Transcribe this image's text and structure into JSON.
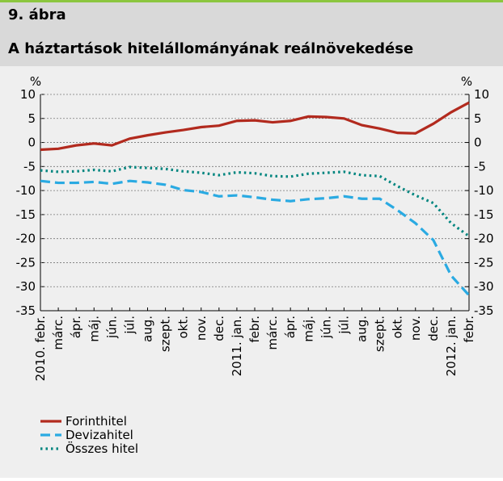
{
  "chart_data": {
    "type": "line",
    "title": "9. ábra",
    "subtitle": "A háztartások hitelállományának reálnövekedése",
    "ylabel": "%",
    "y2label": "%",
    "categories": [
      "2010. febr.",
      "márc.",
      "ápr.",
      "máj.",
      "jún.",
      "júl.",
      "aug.",
      "szept.",
      "okt.",
      "nov.",
      "dec.",
      "2011. jan.",
      "febr.",
      "márc.",
      "ápr.",
      "máj.",
      "jún.",
      "júl.",
      "aug.",
      "szept.",
      "okt.",
      "nov.",
      "dec.",
      "2012. jan.",
      "febr."
    ],
    "series": [
      {
        "name": "Forinthitel",
        "color": "#b22a1e",
        "dash": "solid",
        "values": [
          -1.5,
          -1.3,
          -0.6,
          -0.2,
          -0.6,
          0.8,
          1.5,
          2.1,
          2.6,
          3.2,
          3.5,
          4.5,
          4.6,
          4.2,
          4.5,
          5.4,
          5.3,
          5.0,
          3.6,
          2.9,
          2.0,
          1.9,
          3.9,
          6.3,
          8.3
        ]
      },
      {
        "name": "Devizahitel",
        "color": "#2aaae2",
        "dash": "dashed",
        "values": [
          -8.0,
          -8.4,
          -8.4,
          -8.2,
          -8.6,
          -8.0,
          -8.3,
          -8.8,
          -9.9,
          -10.3,
          -11.2,
          -11.0,
          -11.4,
          -11.9,
          -12.2,
          -11.8,
          -11.6,
          -11.2,
          -11.7,
          -11.7,
          -14.1,
          -16.8,
          -20.3,
          -27.7,
          -31.8
        ]
      },
      {
        "name": "Összes hitel",
        "color": "#00857f",
        "dash": "dotted",
        "values": [
          -5.8,
          -6.1,
          -6.0,
          -5.7,
          -6.0,
          -5.1,
          -5.3,
          -5.5,
          -6.0,
          -6.3,
          -6.8,
          -6.2,
          -6.4,
          -7.0,
          -7.1,
          -6.5,
          -6.3,
          -6.1,
          -6.8,
          -7.0,
          -9.1,
          -11.0,
          -12.6,
          -16.8,
          -19.5
        ]
      }
    ],
    "ylim": [
      -35,
      10
    ],
    "yticks": [
      -35,
      -30,
      -25,
      -20,
      -15,
      -10,
      -5,
      0,
      5,
      10
    ],
    "y2lim": [
      -35,
      10
    ],
    "y2ticks": [
      -35,
      -30,
      -25,
      -20,
      -15,
      -10,
      -5,
      0,
      5,
      10
    ],
    "grid": true
  }
}
